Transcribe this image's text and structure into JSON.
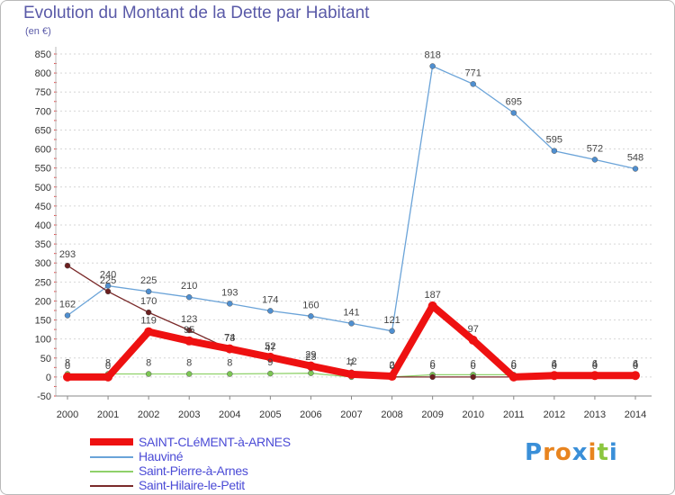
{
  "header": {
    "title": "Evolution du Montant de la Dette par Habitant",
    "unit": "(en €)"
  },
  "chart_data": {
    "type": "line",
    "title": "Evolution du Montant de la Dette par Habitant",
    "subtitle": "(en €)",
    "xlabel": "",
    "ylabel": "",
    "x": [
      "2000",
      "2001",
      "2002",
      "2003",
      "2004",
      "2005",
      "2006",
      "2007",
      "2008",
      "2009",
      "2010",
      "2011",
      "2012",
      "2013",
      "2014"
    ],
    "ylim": [
      -50,
      850
    ],
    "yticks": [
      -50,
      0,
      50,
      100,
      150,
      200,
      250,
      300,
      350,
      400,
      450,
      500,
      550,
      600,
      650,
      700,
      750,
      800,
      850
    ],
    "grid": "horizontal dotted",
    "legend_position": "bottom-left",
    "series": [
      {
        "name": "SAINT-CLéMENT-à-ARNES",
        "color": "#ee1111",
        "values": [
          0,
          0,
          119,
          95,
          74,
          52,
          29,
          7,
          2,
          187,
          97,
          0,
          4,
          4,
          4
        ],
        "labels": [
          "0",
          "0",
          "119",
          "95",
          "74",
          "52",
          "29",
          "7",
          "2",
          "187",
          "97",
          "0",
          "4",
          "4",
          "4"
        ]
      },
      {
        "name": "Hauviné",
        "color": "#6aa3d8",
        "values": [
          162,
          240,
          225,
          210,
          193,
          174,
          160,
          141,
          121,
          818,
          771,
          695,
          595,
          572,
          548
        ],
        "labels": [
          "162",
          "240",
          "225",
          "210",
          "193",
          "174",
          "160",
          "141",
          "121",
          "818",
          "771",
          "695",
          "595",
          "572",
          "548"
        ]
      },
      {
        "name": "Saint-Pierre-à-Arnes",
        "color": "#8fd16a",
        "values": [
          8,
          8,
          8,
          8,
          8,
          9,
          10,
          0,
          0,
          6,
          6,
          6,
          6,
          6,
          6
        ],
        "labels": [
          "8",
          "8",
          "8",
          "8",
          "8",
          "9",
          "",
          "",
          "",
          "6",
          "6",
          "6",
          "6",
          "6",
          "6"
        ]
      },
      {
        "name": "Saint-Hilaire-le-Petit",
        "color": "#7a2a2a",
        "values": [
          293,
          225,
          170,
          123,
          73,
          47,
          23,
          12,
          0,
          0,
          0,
          0,
          0,
          0,
          0
        ],
        "labels": [
          "293",
          "225",
          "170",
          "123",
          "73",
          "47",
          "23",
          "12",
          "0",
          "0",
          "0",
          "0",
          "0",
          "0",
          "0"
        ]
      }
    ]
  },
  "legend": [
    {
      "label": "SAINT-CLéMENT-à-ARNES",
      "color": "#ee1111"
    },
    {
      "label": "Hauviné",
      "color": "#6aa3d8"
    },
    {
      "label": "Saint-Pierre-à-Arnes",
      "color": "#8fd16a"
    },
    {
      "label": "Saint-Hilaire-le-Petit",
      "color": "#7a2a2a"
    }
  ],
  "logo": {
    "letters": [
      "P",
      "r",
      "o",
      "x",
      "i",
      "t",
      "i"
    ],
    "colors": [
      "#3a8fd8",
      "#e8841f",
      "#e8841f",
      "#3a8fd8",
      "#e8841f",
      "#8cc63f",
      "#3a8fd8"
    ]
  }
}
